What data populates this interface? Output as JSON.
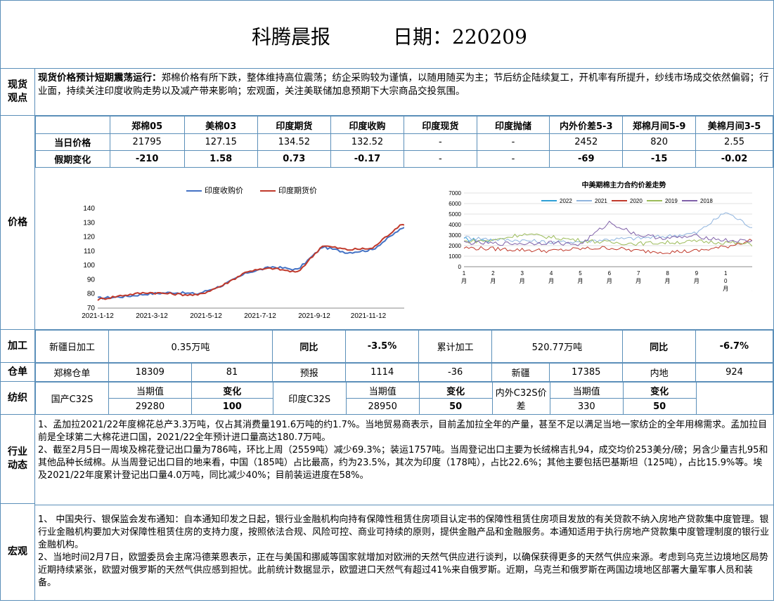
{
  "header": {
    "title": "科腾晨报",
    "date_label": "日期：220209"
  },
  "spot": {
    "label_line1": "现货",
    "label_line2": "观点",
    "bold_lead": "现货价格预计短期震荡运行：",
    "body": "郑棉价格有所下跌，整体维持高位震荡；纺企采购较为谨慎，以随用随买为主；节后纺企陆续复工，开机率有所提升，纱线市场成交依然偏弱；行业面，持续关注印度收购走势以及减产带来影响；宏观面，关注美联储加息预期下大宗商品交投氛围。"
  },
  "price": {
    "label": "价格",
    "columns": [
      "郑棉05",
      "美棉03",
      "印度期货",
      "印度收购",
      "印度现货",
      "印度抛储",
      "内外价差5-3",
      "郑棉月间5-9",
      "美棉月间3-5"
    ],
    "row1_label": "当日价格",
    "row1": [
      "21795",
      "127.15",
      "134.52",
      "132.52",
      "-",
      "-",
      "2452",
      "820",
      "2.55"
    ],
    "row2_label": "假期变化",
    "row2": [
      "-210",
      "1.58",
      "0.73",
      "-0.17",
      "-",
      "-",
      "-69",
      "-15",
      "-0.02"
    ]
  },
  "chart_data": [
    {
      "type": "line",
      "title": "",
      "legend": [
        "印度收购价",
        "印度期货价"
      ],
      "legend_position": "top",
      "ylim": [
        70,
        140
      ],
      "yticks": [
        "70",
        "80",
        "90",
        "100",
        "110",
        "120",
        "130",
        "140"
      ],
      "xticks": [
        "2021-1-12",
        "2021-3-12",
        "2021-5-12",
        "2021-7-12",
        "2021-9-12",
        "2021-11-12",
        "2022-1-12"
      ],
      "x": [
        "2021-01-12",
        "2021-02-12",
        "2021-03-12",
        "2021-04-12",
        "2021-05-12",
        "2021-06-12",
        "2021-07-12",
        "2021-08-12",
        "2021-09-12",
        "2021-10-12",
        "2021-11-12",
        "2021-12-12",
        "2022-01-12",
        "2022-02-08"
      ],
      "series": [
        {
          "name": "印度收购价",
          "color": "#4472c4",
          "values": [
            77,
            78,
            80,
            81,
            80,
            86,
            95,
            99,
            97,
            113,
            109,
            111,
            124,
            133
          ]
        },
        {
          "name": "印度期货价",
          "color": "#c0392b",
          "values": [
            76,
            79,
            81,
            80,
            79,
            86,
            96,
            98,
            95,
            114,
            111,
            112,
            127,
            134
          ]
        }
      ]
    },
    {
      "type": "line",
      "title": "中美期棉主力合约价差走势",
      "legend": [
        "2022",
        "2021",
        "2020",
        "2019",
        "2018"
      ],
      "legend_position": "top",
      "ylim": [
        0,
        7000
      ],
      "yticks": [
        "0",
        "1000",
        "2000",
        "3000",
        "4000",
        "5000",
        "6000",
        "7000"
      ],
      "xticks": [
        "1月",
        "2月",
        "3月",
        "4月",
        "5月",
        "6月",
        "7月",
        "8月",
        "9月",
        "10月",
        "11月",
        "12月"
      ],
      "x": [
        "1月",
        "2月",
        "3月",
        "4月",
        "5月",
        "6月",
        "7月",
        "8月",
        "9月",
        "10月",
        "11月",
        "12月"
      ],
      "series": [
        {
          "name": "2022",
          "color": "#2e9fd6",
          "values": [
            2600,
            2450,
            null,
            null,
            null,
            null,
            null,
            null,
            null,
            null,
            null,
            null
          ]
        },
        {
          "name": "2021",
          "color": "#8fb4de",
          "values": [
            2800,
            2600,
            2500,
            2300,
            2400,
            2600,
            2700,
            2900,
            3200,
            5200,
            3600,
            3000
          ]
        },
        {
          "name": "2020",
          "color": "#c0392b",
          "values": [
            1800,
            1700,
            1600,
            1500,
            1700,
            1800,
            1500,
            1400,
            1500,
            1900,
            2600,
            2700
          ]
        },
        {
          "name": "2019",
          "color": "#9bbb59",
          "values": [
            2400,
            2500,
            3100,
            2800,
            2500,
            2300,
            2200,
            2300,
            2400,
            2300,
            2100,
            2200
          ]
        },
        {
          "name": "2018",
          "color": "#7f60a8",
          "values": [
            2300,
            2200,
            2200,
            2300,
            2100,
            4200,
            3000,
            2700,
            2900,
            2500,
            2400,
            2100
          ]
        }
      ]
    }
  ],
  "processing": {
    "label": "加工",
    "xj_label": "新疆日加工",
    "xj_value": "0.35万吨",
    "yoy_label": "同比",
    "yoy_value": "-3.5%",
    "cum_label": "累计加工",
    "cum_value": "520.77万吨",
    "yoy2_label": "同比",
    "yoy2_value": "-6.7%"
  },
  "warehouse": {
    "label": "仓单",
    "c1": "郑棉仓单",
    "c2": "18309",
    "c3": "81",
    "c4": "预报",
    "c5": "1114",
    "c6": "-36",
    "c7": "新疆",
    "c8": "17385",
    "c9": "内地",
    "c10": "924"
  },
  "textile": {
    "label": "纺织",
    "g1_name": "国产C32S",
    "g1_h1": "当期值",
    "g1_h2": "变化",
    "g1_v1": "29280",
    "g1_v2": "100",
    "g2_name": "印度C32S",
    "g2_h1": "当期值",
    "g2_h2": "变化",
    "g2_v1": "28950",
    "g2_v2": "50",
    "g3_name": "内外C32S价差",
    "g3_h1": "当期值",
    "g3_h2": "变化",
    "g3_v1": "330",
    "g3_v2": "50"
  },
  "industry": {
    "label_line1": "行业",
    "label_line2": "动态",
    "p1": "1、孟加拉2021/22年度棉花总产3.3万吨，仅占其消费量191.6万吨的约1.7%。当地贸易商表示，目前孟加拉全年的产量，甚至不足以满足当地一家纺企的全年用棉需求。孟加拉目前是全球第二大棉花进口国，2021/22全年预计进口量高达180.7万吨。",
    "p2": "2、截至2月5日一周埃及棉花登记出口量为786吨，环比上周（2559吨）减少69.3%；装运1757吨。当周登记出口主要为长绒棉吉扎94，成交均价253美分/磅；另含少量吉扎95和其他品种长绒棉。从当周登记出口目的地来看，中国（185吨）占比最高，约为23.5%，其次为印度（178吨），占比22.6%；其他主要包括巴基斯坦（125吨），占比15.9%等。埃及2021/22年度累计登记出口量4.0万吨，同比减少40%；目前装运进度在58%。"
  },
  "macro": {
    "label": "宏观",
    "p1": "1、 中国央行、银保监会发布通知：自本通知印发之日起，银行业金融机构向持有保障性租赁住房项目认定书的保障性租赁住房项目发放的有关贷款不纳入房地产贷款集中度管理。银行业金融机构要加大对保障性租赁住房的支持力度，按照依法合规、风险可控、商业可持续的原则，提供金融产品和金融服务。本通知适用于执行房地产贷款集中度管理制度的银行业金融机构。",
    "p2": "2、当地时间2月7日，欧盟委员会主席冯德莱恩表示，正在与美国和挪威等国家就增加对欧洲的天然气供应进行谈判，以确保获得更多的天然气供应来源。考虑到乌克兰边境地区局势近期持续紧张，欧盟对俄罗斯的天然气供应感到担忧。此前统计数据显示，欧盟进口天然气有超过41%来自俄罗斯。近期，乌克兰和俄罗斯在两国边境地区部署大量军事人员和装备。"
  }
}
